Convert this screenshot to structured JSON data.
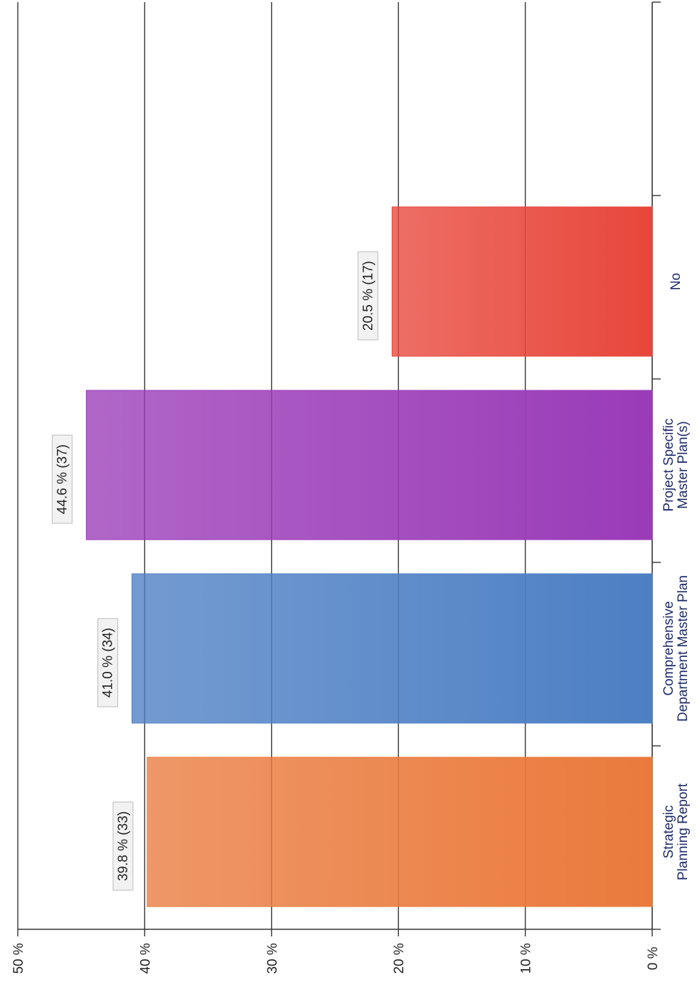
{
  "chart_data": {
    "type": "bar",
    "orientation": "vertical",
    "rotated": "90deg-clockwise-scan",
    "categories": [
      [
        "Strategic",
        "Planning Report"
      ],
      [
        "Comprehensive",
        "Department Master Plan"
      ],
      [
        "Project Specific",
        "Master Plan(s)"
      ],
      [
        "No"
      ]
    ],
    "values": [
      39.8,
      41.0,
      44.6,
      20.5
    ],
    "counts": [
      33,
      34,
      37,
      17
    ],
    "data_labels": [
      "39.8 % (33)",
      "41.0 % (34)",
      "44.6 % (37)",
      "20.5 % (17)"
    ],
    "colors": [
      "#ea7a3c",
      "#4d7fc4",
      "#9a3bb8",
      "#e8463a"
    ],
    "ylim": [
      0,
      50
    ],
    "y_ticks": [
      0,
      10,
      20,
      30,
      40,
      50
    ],
    "y_tick_labels": [
      "0 %",
      "10 %",
      "20 %",
      "30 %",
      "40 %",
      "50 %"
    ],
    "grid": true,
    "legend": "none",
    "title": "",
    "xlabel": "",
    "ylabel": ""
  }
}
